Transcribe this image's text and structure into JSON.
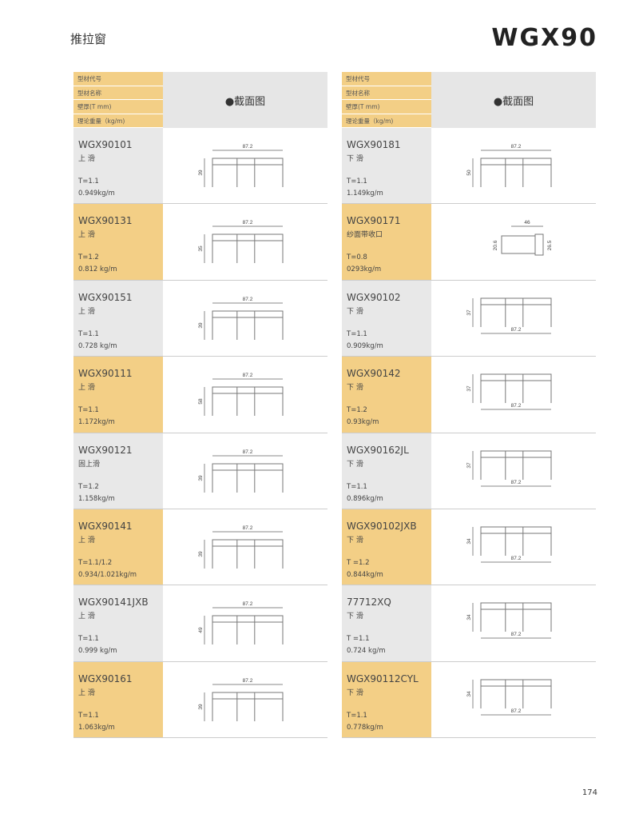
{
  "header": {
    "title": "推拉窗",
    "code": "WGX90"
  },
  "table_head": {
    "labels": [
      "型材代号",
      "型材名称",
      "壁厚(T mm)",
      "理论重量（kg/m)"
    ],
    "section": "●截面图"
  },
  "left": {
    "rows": [
      {
        "code": "WGX90101",
        "name": "上 滑",
        "thickness": "T=1.1",
        "weight": "0.949kg/m",
        "dims": [
          "87.2",
          "39"
        ]
      },
      {
        "code": "WGX90131",
        "name": "上 滑",
        "thickness": "T=1.2",
        "weight": "0.812 kg/m",
        "dims": [
          "87.2",
          "35"
        ]
      },
      {
        "code": "WGX90151",
        "name": "上 滑",
        "thickness": "T=1.1",
        "weight": "0.728 kg/m",
        "dims": [
          "87.2",
          "39"
        ]
      },
      {
        "code": "WGX90111",
        "name": "上 滑",
        "thickness": "T=1.1",
        "weight": "1.172kg/m",
        "dims": [
          "87.2",
          "58"
        ]
      },
      {
        "code": "WGX90121",
        "name": "固上滑",
        "thickness": "T=1.2",
        "weight": "1.158kg/m",
        "dims": [
          "87.2",
          "39"
        ]
      },
      {
        "code": "WGX90141",
        "name": "上 滑",
        "thickness": "T=1.1/1.2",
        "weight": "0.934/1.021kg/m",
        "dims": [
          "87.2",
          "39"
        ]
      },
      {
        "code": "WGX90141JXB",
        "name": "上 滑",
        "thickness": "T=1.1",
        "weight": "0.999 kg/m",
        "dims": [
          "87.2",
          "49"
        ]
      },
      {
        "code": "WGX90161",
        "name": "上 滑",
        "thickness": "T=1.1",
        "weight": "1.063kg/m",
        "dims": [
          "87.2",
          "39"
        ]
      }
    ]
  },
  "right": {
    "rows": [
      {
        "code": "WGX90181",
        "name": "下 滑",
        "thickness": "T=1.1",
        "weight": "1.149kg/m",
        "dims": [
          "87.2",
          "50"
        ]
      },
      {
        "code": "WGX90171",
        "name": "纱面带收口",
        "thickness": "T=0.8",
        "weight": "0293kg/m",
        "dims": [
          "46",
          "20.6",
          "26.5"
        ]
      },
      {
        "code": "WGX90102",
        "name": "下 滑",
        "thickness": "T=1.1",
        "weight": "0.909kg/m",
        "dims": [
          "87.2",
          "37"
        ]
      },
      {
        "code": "WGX90142",
        "name": "下 滑",
        "thickness": "T=1.2",
        "weight": "0.93kg/m",
        "dims": [
          "87.2",
          "37"
        ]
      },
      {
        "code": "WGX90162JL",
        "name": "下 滑",
        "thickness": "T=1.1",
        "weight": "0.896kg/m",
        "dims": [
          "87.2",
          "37"
        ]
      },
      {
        "code": "WGX90102JXB",
        "name": "下 滑",
        "thickness": "T =1.2",
        "weight": "0.844kg/m",
        "dims": [
          "87.2",
          "34"
        ]
      },
      {
        "code": "77712XQ",
        "name": "下 滑",
        "thickness": "T =1.1",
        "weight": "0.724 kg/m",
        "dims": [
          "87.2",
          "34"
        ]
      },
      {
        "code": "WGX90112CYL",
        "name": "下 滑",
        "thickness": "T=1.1",
        "weight": "0.778kg/m",
        "dims": [
          "87.2",
          "34"
        ]
      }
    ]
  },
  "page_number": "174"
}
